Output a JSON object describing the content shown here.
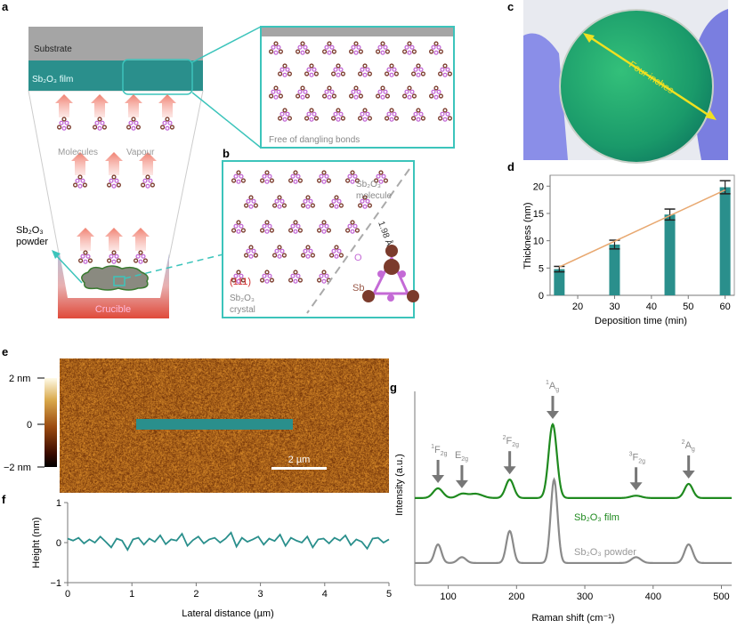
{
  "panel_labels": {
    "a": "a",
    "b": "b",
    "c": "c",
    "d": "d",
    "e": "e",
    "f": "f",
    "g": "g"
  },
  "panel_a": {
    "substrate": "Substrate",
    "film": "Sb₂O₃ film",
    "molecules": "Molecules",
    "vapour": "Vapour",
    "powder_line1": "Sb₂O₃",
    "powder_line2": "powder",
    "crucible": "Crucible",
    "zoom_caption": "Free of dangling bonds"
  },
  "panel_b": {
    "molecule_line1": "Sb₂O₃",
    "molecule_line2": "molecule",
    "bond_length": "1.98 Å",
    "atom_o": "O",
    "atom_sb": "Sb",
    "plane": "(111)",
    "crystal_line1": "Sb₂O₃",
    "crystal_line2": "crystal"
  },
  "panel_c": {
    "annotation": "Four inches"
  },
  "panel_e": {
    "cbar_top": "2 nm",
    "cbar_mid": "0",
    "cbar_bottom": "−2 nm",
    "scale_bar": "2 µm"
  },
  "colors": {
    "teal": "#2a8f8c",
    "accent_box": "#3cc4bb",
    "film_green": "#1f8a1f",
    "powder_gray": "#8a8a8a",
    "fit_orange": "#e8a870",
    "atom_sb": "#7b3b2c",
    "atom_o": "#c46ad6"
  },
  "chart_data": [
    {
      "id": "d",
      "type": "bar",
      "xlabel": "Deposition time (min)",
      "ylabel": "Thickness (nm)",
      "xlim": [
        12.5,
        62.5
      ],
      "ylim": [
        0,
        22
      ],
      "xticks": [
        20,
        30,
        40,
        50,
        60
      ],
      "yticks": [
        0,
        5,
        10,
        15,
        20
      ],
      "x": [
        15,
        30,
        45,
        60
      ],
      "values": [
        4.8,
        9.3,
        14.8,
        19.8
      ],
      "errors": [
        0.5,
        0.8,
        1.0,
        1.2
      ],
      "fit_line": {
        "x": [
          15,
          60
        ],
        "y": [
          5.2,
          19.3
        ]
      },
      "grid": false
    },
    {
      "id": "f",
      "type": "line",
      "xlabel": "Lateral distance (µm)",
      "ylabel": "Height (nm)",
      "xlim": [
        0,
        5
      ],
      "ylim": [
        -1,
        1
      ],
      "xticks": [
        0,
        1,
        2,
        3,
        4,
        5
      ],
      "yticks": [
        -1,
        0,
        1
      ],
      "y": [
        0.1,
        0.05,
        0.12,
        -0.02,
        0.08,
        0.0,
        0.15,
        0.02,
        -0.12,
        0.1,
        0.05,
        -0.18,
        0.08,
        0.12,
        -0.05,
        0.1,
        0.02,
        0.18,
        -0.04,
        0.08,
        0.05,
        0.22,
        -0.08,
        0.06,
        0.15,
        -0.02,
        0.08,
        0.12,
        0.0,
        0.1,
        0.25,
        -0.1,
        0.12,
        0.02,
        0.08,
        0.15,
        -0.05,
        0.1,
        0.04,
        0.2,
        -0.08,
        0.12,
        0.05,
        0.0,
        0.15,
        -0.12,
        0.08,
        0.1,
        -0.02,
        0.12,
        0.05,
        0.18,
        -0.06,
        0.08,
        0.02,
        -0.15,
        0.1,
        0.12,
        0.0,
        0.08
      ],
      "grid": false
    },
    {
      "id": "g",
      "type": "line",
      "xlabel": "Raman shift (cm⁻¹)",
      "ylabel": "Intensity (a.u.)",
      "xlim": [
        51,
        515
      ],
      "ylim": [
        0,
        1
      ],
      "xticks": [
        100,
        200,
        300,
        400,
        500
      ],
      "series": [
        {
          "name": "Sb₂O₃ film",
          "baseline": 0.45,
          "peaks": [
            [
              85,
              0.05,
              7
            ],
            [
              120,
              0.02,
              7
            ],
            [
              140,
              0.022,
              10
            ],
            [
              190,
              0.095,
              6
            ],
            [
              253,
              0.38,
              6
            ],
            [
              375,
              0.012,
              8
            ],
            [
              452,
              0.073,
              6
            ]
          ]
        },
        {
          "name": "Sb₂O₃ powder",
          "baseline": 0.115,
          "peaks": [
            [
              85,
              0.096,
              5
            ],
            [
              120,
              0.03,
              6
            ],
            [
              190,
              0.165,
              5
            ],
            [
              255,
              0.43,
              5
            ],
            [
              375,
              0.03,
              7
            ],
            [
              452,
              0.096,
              6
            ]
          ]
        }
      ],
      "annotations": [
        {
          "sup": "1",
          "main": "F",
          "sub": "2g",
          "x": 85
        },
        {
          "sup": "",
          "main": "E",
          "sub": "2g",
          "x": 120
        },
        {
          "sup": "2",
          "main": "F",
          "sub": "2g",
          "x": 190
        },
        {
          "sup": "1",
          "main": "A",
          "sub": "g",
          "x": 253
        },
        {
          "sup": "3",
          "main": "F",
          "sub": "2g",
          "x": 375
        },
        {
          "sup": "2",
          "main": "A",
          "sub": "g",
          "x": 452
        }
      ]
    }
  ]
}
